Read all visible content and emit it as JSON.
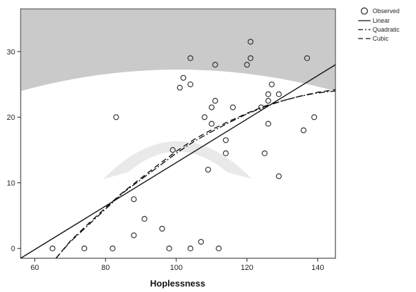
{
  "chart_data": {
    "type": "scatter",
    "xlabel": "Hoplessness",
    "ylabel": "",
    "xlim": [
      56,
      145
    ],
    "ylim": [
      -1.5,
      36.5
    ],
    "x_ticks": [
      60,
      80,
      100,
      120,
      140
    ],
    "y_ticks": [
      0,
      10,
      20,
      30
    ],
    "grid": false,
    "legend_position": "top-right",
    "legend": {
      "observed": "Observed",
      "linear": "Linear",
      "quadratic": "Quadratic",
      "cubic": "Cubic"
    },
    "observed": [
      {
        "x": 65,
        "y": 0
      },
      {
        "x": 74,
        "y": 0
      },
      {
        "x": 82,
        "y": 0
      },
      {
        "x": 83,
        "y": 20
      },
      {
        "x": 88,
        "y": 2
      },
      {
        "x": 88,
        "y": 7.5
      },
      {
        "x": 91,
        "y": 4.5
      },
      {
        "x": 96,
        "y": 3
      },
      {
        "x": 98,
        "y": 0
      },
      {
        "x": 99,
        "y": 15
      },
      {
        "x": 101,
        "y": 24.5
      },
      {
        "x": 102,
        "y": 26
      },
      {
        "x": 104,
        "y": 25
      },
      {
        "x": 104,
        "y": 29
      },
      {
        "x": 104,
        "y": 0
      },
      {
        "x": 107,
        "y": 1
      },
      {
        "x": 108,
        "y": 20
      },
      {
        "x": 109,
        "y": 12
      },
      {
        "x": 110,
        "y": 21.5
      },
      {
        "x": 110,
        "y": 19
      },
      {
        "x": 111,
        "y": 22.5
      },
      {
        "x": 111,
        "y": 28
      },
      {
        "x": 112,
        "y": 0
      },
      {
        "x": 114,
        "y": 14.5
      },
      {
        "x": 114,
        "y": 16.5
      },
      {
        "x": 116,
        "y": 21.5
      },
      {
        "x": 120,
        "y": 28
      },
      {
        "x": 121,
        "y": 29
      },
      {
        "x": 121,
        "y": 31.5
      },
      {
        "x": 124,
        "y": 21.5
      },
      {
        "x": 125,
        "y": 14.5
      },
      {
        "x": 126,
        "y": 23.5
      },
      {
        "x": 126,
        "y": 22.5
      },
      {
        "x": 126,
        "y": 19
      },
      {
        "x": 127,
        "y": 25
      },
      {
        "x": 129,
        "y": 11
      },
      {
        "x": 129,
        "y": 23.5
      },
      {
        "x": 136,
        "y": 18
      },
      {
        "x": 137,
        "y": 29
      },
      {
        "x": 139,
        "y": 20
      }
    ],
    "series": [
      {
        "name": "Linear",
        "x": [
          56,
          145
        ],
        "y": [
          -1.5,
          28
        ]
      },
      {
        "name": "Quadratic",
        "x": [
          66,
          70,
          75,
          80,
          85,
          90,
          95,
          100,
          105,
          110,
          115,
          120,
          125,
          130,
          135,
          140,
          145
        ],
        "y": [
          -1.5,
          1,
          3.5,
          6,
          8.5,
          10.5,
          12.5,
          14.5,
          16.3,
          17.8,
          19.2,
          20.5,
          21.6,
          22.5,
          23.2,
          23.7,
          24
        ]
      },
      {
        "name": "Cubic",
        "x": [
          66,
          70,
          75,
          80,
          85,
          90,
          95,
          100,
          105,
          110,
          115,
          120,
          125,
          130,
          135,
          140,
          145
        ],
        "y": [
          -1.5,
          1.1,
          3.7,
          6.2,
          8.6,
          10.7,
          12.8,
          14.8,
          16.6,
          18.1,
          19.4,
          20.6,
          21.7,
          22.5,
          23.2,
          23.8,
          24.2
        ]
      }
    ]
  }
}
